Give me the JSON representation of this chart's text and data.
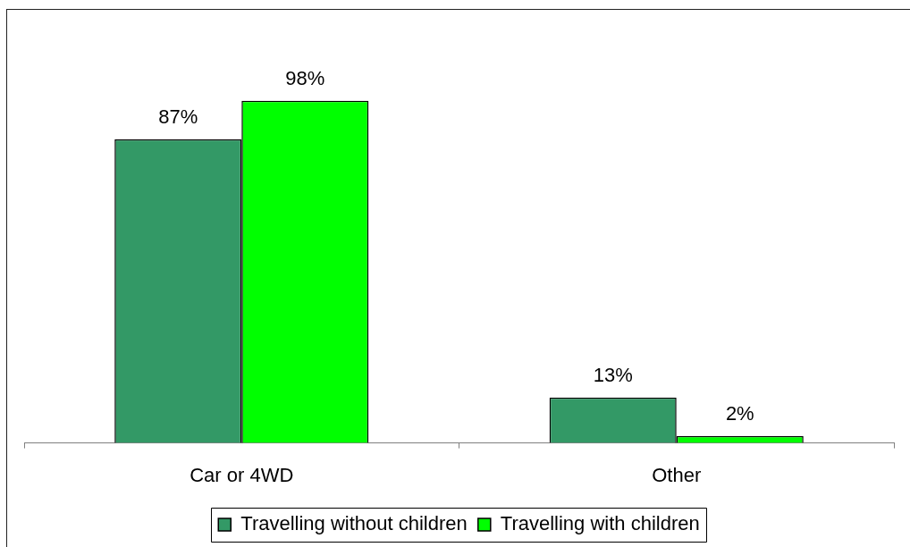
{
  "chart_data": {
    "type": "bar",
    "categories": [
      "Car or 4WD",
      "Other"
    ],
    "series": [
      {
        "name": "Travelling without children",
        "color": "#339966",
        "values": [
          87,
          13
        ],
        "value_labels": [
          "87%",
          "13%"
        ]
      },
      {
        "name": "Travelling with children",
        "color": "#00ff00",
        "values": [
          98,
          2
        ],
        "value_labels": [
          "98%",
          "2%"
        ]
      }
    ],
    "tick_labels": "x",
    "legend": "bottom"
  }
}
